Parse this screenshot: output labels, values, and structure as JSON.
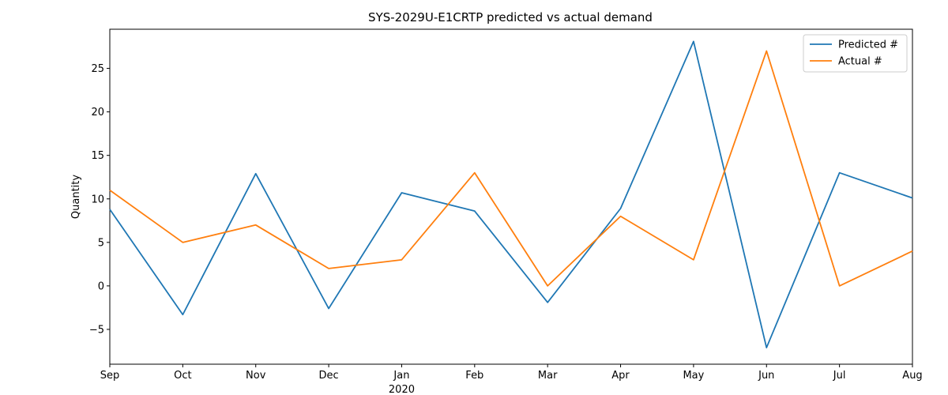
{
  "chart_data": {
    "type": "line",
    "title": "SYS-2029U-E1CRTP predicted vs actual demand",
    "xlabel": "",
    "ylabel": "Quantity",
    "categories": [
      "Sep",
      "Oct",
      "Nov",
      "Dec",
      "Jan",
      "Feb",
      "Mar",
      "Apr",
      "May",
      "Jun",
      "Jul",
      "Aug"
    ],
    "x_sublabel": {
      "category": "Jan",
      "text": "2020"
    },
    "y_ticks": [
      -5,
      0,
      5,
      10,
      15,
      20,
      25
    ],
    "ylim": [
      -9,
      29.5
    ],
    "grid": false,
    "legend_position": "top-right",
    "series": [
      {
        "name": "Predicted #",
        "color": "#1f77b4",
        "values": [
          8.8,
          -3.3,
          12.9,
          -2.6,
          10.7,
          8.6,
          -1.9,
          8.9,
          28.1,
          -7.1,
          13.0,
          10.1
        ]
      },
      {
        "name": "Actual #",
        "color": "#ff7f0e",
        "values": [
          11,
          5,
          7,
          2,
          3,
          13,
          0,
          8,
          3,
          27,
          0,
          4
        ]
      }
    ]
  }
}
